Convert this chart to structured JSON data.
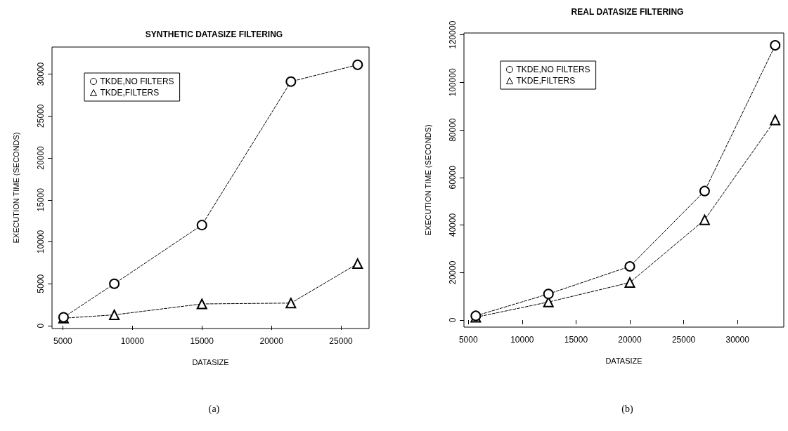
{
  "chart_data": [
    {
      "type": "line",
      "title": "SYNTHETIC DATASIZE FILTERING",
      "xlabel": "DATASIZE",
      "ylabel": "EXECUTION TIME (SECONDS)",
      "annotations": [
        "(a)"
      ],
      "legend": "top left",
      "grid": false,
      "line_style": "dashed",
      "xlim": [
        4220,
        27020
      ],
      "ylim": [
        -330,
        33220
      ],
      "xticks": [
        5000,
        10000,
        15000,
        20000,
        25000
      ],
      "yticks": [
        0,
        5000,
        10000,
        15000,
        20000,
        25000,
        30000
      ],
      "series": [
        {
          "name": "TKDE,NO FILTERS",
          "color": "#000000",
          "marker": "circle",
          "x": [
            5050,
            8700,
            15000,
            21400,
            26200
          ],
          "values": [
            1000,
            5000,
            12000,
            29100,
            31100
          ]
        },
        {
          "name": "TKDE,FILTERS",
          "color": "#000000",
          "marker": "triangle",
          "x": [
            5050,
            8700,
            15000,
            21400,
            26200
          ],
          "values": [
            900,
            1300,
            2600,
            2700,
            7400
          ]
        }
      ]
    },
    {
      "type": "line",
      "title": "REAL DATASIZE FILTERING",
      "xlabel": "DATASIZE",
      "ylabel": "EXECUTION TIME (SECONDS)",
      "annotations": [
        "(b)"
      ],
      "legend": "top left",
      "grid": false,
      "line_style": "dashed",
      "xlim": [
        4590,
        34300
      ],
      "ylim": [
        -2950,
        120800
      ],
      "xticks": [
        5000,
        10000,
        15000,
        20000,
        25000,
        30000
      ],
      "yticks": [
        0,
        20000,
        40000,
        60000,
        80000,
        100000,
        120000
      ],
      "series": [
        {
          "name": "TKDE,NO FILTERS",
          "color": "#000000",
          "marker": "circle",
          "x": [
            5690,
            12440,
            20000,
            26950,
            33500
          ],
          "values": [
            1800,
            11000,
            22600,
            54300,
            115600
          ]
        },
        {
          "name": "TKDE,FILTERS",
          "color": "#000000",
          "marker": "triangle",
          "x": [
            5690,
            12440,
            20000,
            26950,
            33500
          ],
          "values": [
            1200,
            7600,
            15800,
            42200,
            84200
          ]
        }
      ]
    }
  ]
}
